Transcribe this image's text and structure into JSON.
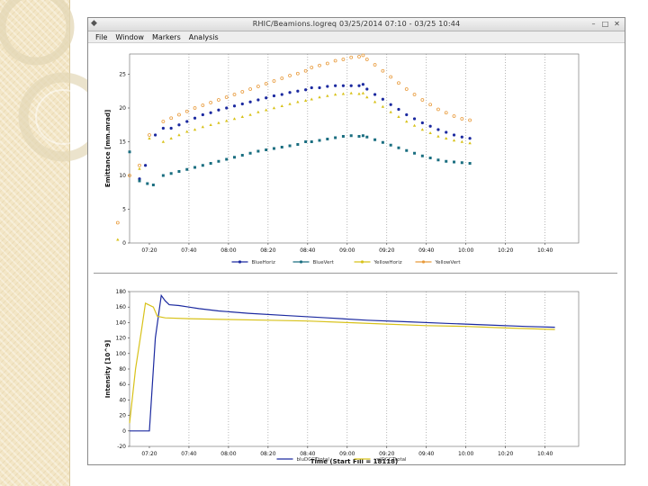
{
  "window": {
    "title": "RHIC/Beamions.logreq    03/25/2014 07:10 - 03/25 10:44",
    "menu": [
      "File",
      "Window",
      "Markers",
      "Analysis"
    ],
    "controls": [
      "–",
      "□",
      "✕"
    ],
    "app_icon": "app-icon"
  },
  "chart_data": [
    {
      "type": "scatter",
      "title": "",
      "ylabel": "Emittance [mm.mrad]",
      "xlabel": "",
      "ylim": [
        0,
        28
      ],
      "yticks": [
        0,
        5,
        10,
        15,
        20,
        25
      ],
      "xlim_minutes": [
        0,
        227
      ],
      "xticks": [
        {
          "label": "07:20",
          "t": 10
        },
        {
          "label": "07:40",
          "t": 30
        },
        {
          "label": "08:00",
          "t": 50
        },
        {
          "label": "08:20",
          "t": 70
        },
        {
          "label": "08:40",
          "t": 90
        },
        {
          "label": "09:00",
          "t": 110
        },
        {
          "label": "09:20",
          "t": 130
        },
        {
          "label": "09:40",
          "t": 150
        },
        {
          "label": "10:00",
          "t": 170
        },
        {
          "label": "10:20",
          "t": 190
        },
        {
          "label": "10:40",
          "t": 210
        }
      ],
      "vertical_gridlines_at": [
        30,
        50,
        70,
        90,
        110,
        130,
        150,
        170,
        190,
        210
      ],
      "legend": [
        "BlueHoriz",
        "BlueVert",
        "YellowHoriz",
        "YellowVert"
      ],
      "legend_placement": "bottom-center",
      "series": [
        {
          "name": "BlueHoriz",
          "color": "#1c2aa0",
          "marker": "circle",
          "points": [
            [
              5,
              9.5
            ],
            [
              8,
              11.5
            ],
            [
              13,
              16
            ],
            [
              17,
              17
            ],
            [
              21,
              17
            ],
            [
              25,
              17.5
            ],
            [
              29,
              18
            ],
            [
              33,
              18.5
            ],
            [
              37,
              19
            ],
            [
              41,
              19.3
            ],
            [
              45,
              19.7
            ],
            [
              49,
              20
            ],
            [
              53,
              20.3
            ],
            [
              57,
              20.6
            ],
            [
              61,
              20.9
            ],
            [
              65,
              21.2
            ],
            [
              69,
              21.5
            ],
            [
              73,
              21.8
            ],
            [
              77,
              22
            ],
            [
              81,
              22.3
            ],
            [
              85,
              22.5
            ],
            [
              89,
              22.7
            ],
            [
              92,
              23
            ],
            [
              96,
              23
            ],
            [
              100,
              23.2
            ],
            [
              104,
              23.3
            ],
            [
              108,
              23.3
            ],
            [
              112,
              23.3
            ],
            [
              116,
              23.3
            ],
            [
              118,
              23.5
            ],
            [
              120,
              22.8
            ],
            [
              124,
              22
            ],
            [
              128,
              21.3
            ],
            [
              132,
              20.5
            ],
            [
              136,
              19.8
            ],
            [
              140,
              19
            ],
            [
              144,
              18.4
            ],
            [
              148,
              17.8
            ],
            [
              152,
              17.3
            ],
            [
              156,
              16.8
            ],
            [
              160,
              16.4
            ],
            [
              164,
              16
            ],
            [
              168,
              15.7
            ],
            [
              172,
              15.5
            ]
          ]
        },
        {
          "name": "BlueVert",
          "color": "#1a6e80",
          "marker": "square",
          "points": [
            [
              0,
              13.5
            ],
            [
              5,
              9.2
            ],
            [
              9,
              8.8
            ],
            [
              12,
              8.6
            ],
            [
              17,
              10
            ],
            [
              21,
              10.3
            ],
            [
              25,
              10.6
            ],
            [
              29,
              10.9
            ],
            [
              33,
              11.2
            ],
            [
              37,
              11.5
            ],
            [
              41,
              11.8
            ],
            [
              45,
              12.1
            ],
            [
              49,
              12.4
            ],
            [
              53,
              12.7
            ],
            [
              57,
              13
            ],
            [
              61,
              13.3
            ],
            [
              65,
              13.6
            ],
            [
              69,
              13.8
            ],
            [
              73,
              14
            ],
            [
              77,
              14.2
            ],
            [
              81,
              14.4
            ],
            [
              85,
              14.6
            ],
            [
              89,
              15
            ],
            [
              92,
              15
            ],
            [
              96,
              15.2
            ],
            [
              100,
              15.4
            ],
            [
              104,
              15.6
            ],
            [
              108,
              15.8
            ],
            [
              112,
              15.9
            ],
            [
              116,
              15.8
            ],
            [
              118,
              15.9
            ],
            [
              120,
              15.7
            ],
            [
              124,
              15.3
            ],
            [
              128,
              14.9
            ],
            [
              132,
              14.5
            ],
            [
              136,
              14.1
            ],
            [
              140,
              13.7
            ],
            [
              144,
              13.3
            ],
            [
              148,
              12.9
            ],
            [
              152,
              12.6
            ],
            [
              156,
              12.3
            ],
            [
              160,
              12.1
            ],
            [
              164,
              12
            ],
            [
              168,
              11.9
            ],
            [
              172,
              11.8
            ]
          ]
        },
        {
          "name": "YellowHoriz",
          "color": "#d8c21a",
          "marker": "triangle",
          "points": [
            [
              -6,
              0.5
            ],
            [
              5,
              11
            ],
            [
              10,
              15.5
            ],
            [
              17,
              15
            ],
            [
              21,
              15.5
            ],
            [
              25,
              16
            ],
            [
              29,
              16.5
            ],
            [
              33,
              16.8
            ],
            [
              37,
              17.2
            ],
            [
              41,
              17.5
            ],
            [
              45,
              17.8
            ],
            [
              49,
              18.1
            ],
            [
              53,
              18.4
            ],
            [
              57,
              18.7
            ],
            [
              61,
              19
            ],
            [
              65,
              19.4
            ],
            [
              69,
              19.7
            ],
            [
              73,
              20
            ],
            [
              77,
              20.3
            ],
            [
              81,
              20.6
            ],
            [
              85,
              20.9
            ],
            [
              89,
              21.1
            ],
            [
              92,
              21.3
            ],
            [
              96,
              21.6
            ],
            [
              100,
              21.8
            ],
            [
              104,
              22
            ],
            [
              108,
              22.1
            ],
            [
              112,
              22.2
            ],
            [
              116,
              22.1
            ],
            [
              118,
              22.2
            ],
            [
              120,
              21.6
            ],
            [
              124,
              20.9
            ],
            [
              128,
              20.2
            ],
            [
              132,
              19.4
            ],
            [
              136,
              18.7
            ],
            [
              140,
              18
            ],
            [
              144,
              17.4
            ],
            [
              148,
              16.8
            ],
            [
              152,
              16.3
            ],
            [
              156,
              15.8
            ],
            [
              160,
              15.5
            ],
            [
              164,
              15.2
            ],
            [
              168,
              15
            ],
            [
              172,
              14.8
            ]
          ]
        },
        {
          "name": "YellowVert",
          "color": "#e89a3a",
          "marker": "circle-open",
          "points": [
            [
              -6,
              3
            ],
            [
              0,
              10
            ],
            [
              5,
              11.5
            ],
            [
              10,
              16
            ],
            [
              17,
              18
            ],
            [
              21,
              18.5
            ],
            [
              25,
              19
            ],
            [
              29,
              19.5
            ],
            [
              33,
              20
            ],
            [
              37,
              20.4
            ],
            [
              41,
              20.8
            ],
            [
              45,
              21.2
            ],
            [
              49,
              21.6
            ],
            [
              53,
              22
            ],
            [
              57,
              22.4
            ],
            [
              61,
              22.8
            ],
            [
              65,
              23.2
            ],
            [
              69,
              23.6
            ],
            [
              73,
              24
            ],
            [
              77,
              24.4
            ],
            [
              81,
              24.8
            ],
            [
              85,
              25.1
            ],
            [
              89,
              25.5
            ],
            [
              92,
              26
            ],
            [
              96,
              26.3
            ],
            [
              100,
              26.6
            ],
            [
              104,
              27
            ],
            [
              108,
              27.2
            ],
            [
              112,
              27.5
            ],
            [
              116,
              27.6
            ],
            [
              118,
              27.8
            ],
            [
              120,
              27.2
            ],
            [
              124,
              26.4
            ],
            [
              128,
              25.5
            ],
            [
              132,
              24.6
            ],
            [
              136,
              23.7
            ],
            [
              140,
              22.8
            ],
            [
              144,
              22
            ],
            [
              148,
              21.2
            ],
            [
              152,
              20.5
            ],
            [
              156,
              19.8
            ],
            [
              160,
              19.3
            ],
            [
              164,
              18.8
            ],
            [
              168,
              18.4
            ],
            [
              172,
              18.2
            ]
          ]
        }
      ]
    },
    {
      "type": "line",
      "title": "",
      "ylabel": "Intensity [10^9]",
      "xlabel": "Time (Start Fill = 18118)",
      "ylim": [
        -20,
        180
      ],
      "yticks": [
        -20,
        0,
        20,
        40,
        60,
        80,
        100,
        120,
        140,
        160,
        180
      ],
      "xlim_minutes": [
        0,
        227
      ],
      "xticks": [
        {
          "label": "07:20",
          "t": 10
        },
        {
          "label": "07:40",
          "t": 30
        },
        {
          "label": "08:00",
          "t": 50
        },
        {
          "label": "08:20",
          "t": 70
        },
        {
          "label": "08:40",
          "t": 90
        },
        {
          "label": "09:00",
          "t": 110
        },
        {
          "label": "09:20",
          "t": 130
        },
        {
          "label": "09:40",
          "t": 150
        },
        {
          "label": "10:00",
          "t": 170
        },
        {
          "label": "10:20",
          "t": 190
        },
        {
          "label": "10:40",
          "t": 210
        }
      ],
      "vertical_gridlines_at": [
        30,
        50,
        70,
        90,
        110,
        130,
        150,
        170,
        190,
        210
      ],
      "legend": [
        "bluDCCTtotal",
        "yelDCCTtotal"
      ],
      "legend_placement": "bottom-center",
      "series": [
        {
          "name": "bluDCCTtotal",
          "color": "#1c2aa0",
          "points": [
            [
              0,
              0
            ],
            [
              5,
              0
            ],
            [
              10,
              0
            ],
            [
              13,
              120
            ],
            [
              16,
              175
            ],
            [
              18,
              168
            ],
            [
              20,
              163
            ],
            [
              25,
              162
            ],
            [
              30,
              160
            ],
            [
              35,
              158
            ],
            [
              45,
              155
            ],
            [
              60,
              152
            ],
            [
              80,
              149
            ],
            [
              100,
              146
            ],
            [
              120,
              143
            ],
            [
              140,
              141
            ],
            [
              160,
              139
            ],
            [
              180,
              137
            ],
            [
              200,
              135
            ],
            [
              215,
              134
            ]
          ]
        },
        {
          "name": "yelDCCTtotal",
          "color": "#d8c21a",
          "points": [
            [
              0,
              10
            ],
            [
              3,
              80
            ],
            [
              6,
              130
            ],
            [
              8,
              165
            ],
            [
              12,
              160
            ],
            [
              14,
              148
            ],
            [
              18,
              146
            ],
            [
              30,
              145
            ],
            [
              50,
              144
            ],
            [
              70,
              143
            ],
            [
              90,
              142
            ],
            [
              110,
              140
            ],
            [
              130,
              138
            ],
            [
              150,
              136
            ],
            [
              170,
              135
            ],
            [
              190,
              133
            ],
            [
              215,
              131
            ]
          ]
        }
      ]
    }
  ]
}
